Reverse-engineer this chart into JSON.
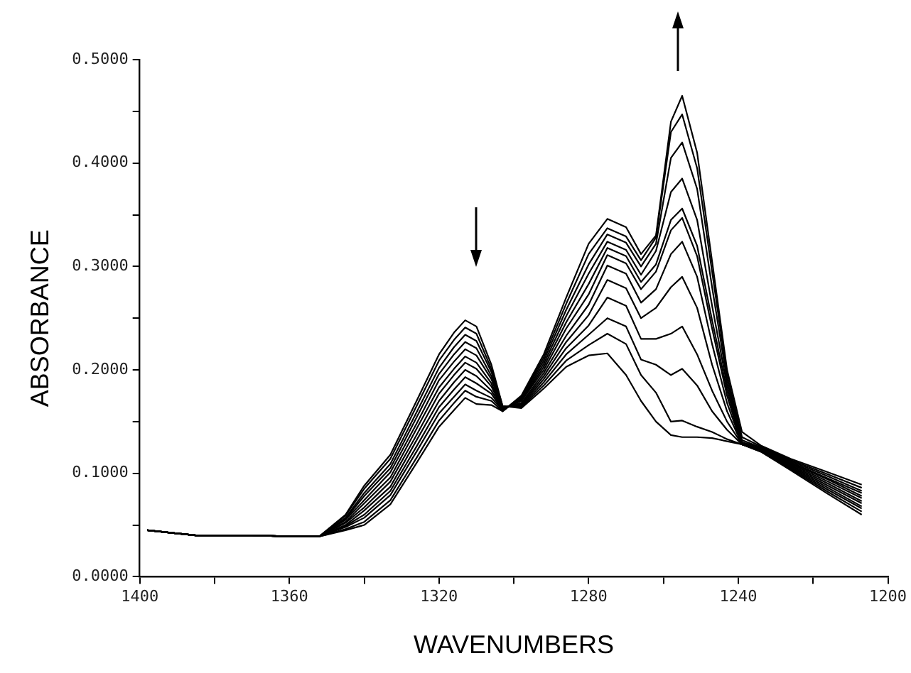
{
  "chart_data": {
    "type": "line",
    "xlabel": "WAVENUMBERS",
    "ylabel": "ABSORBANCE",
    "xlim": [
      1400,
      1200
    ],
    "ylim": [
      0,
      0.5
    ],
    "xticks": [
      1400,
      {
        "value": 1380,
        "label": null
      },
      1360,
      {
        "value": 1340,
        "label": null
      },
      1320,
      {
        "value": 1300,
        "label": null
      },
      1280,
      {
        "value": 1260,
        "label": null
      },
      1240,
      {
        "value": 1220,
        "label": null
      },
      1200
    ],
    "yticks": [
      {
        "value": 0,
        "label": "0.0000"
      },
      {
        "value": 0.05,
        "label": null
      },
      {
        "value": 0.1,
        "label": "0.1000"
      },
      {
        "value": 0.15,
        "label": null
      },
      {
        "value": 0.2,
        "label": "0.2000"
      },
      {
        "value": 0.25,
        "label": null
      },
      {
        "value": 0.3,
        "label": "0.3000"
      },
      {
        "value": 0.35,
        "label": null
      },
      {
        "value": 0.4,
        "label": "0.4000"
      },
      {
        "value": 0.45,
        "label": null
      },
      {
        "value": 0.5,
        "label": "0.5000"
      }
    ],
    "marker": "none",
    "legend": false,
    "grid": false,
    "x": [
      1398,
      1385,
      1370,
      1360,
      1352,
      1345,
      1340,
      1333,
      1326,
      1320,
      1316,
      1313,
      1310,
      1306,
      1303,
      1298,
      1292,
      1286,
      1280,
      1275,
      1270,
      1266,
      1262,
      1258,
      1255,
      1251,
      1247,
      1243,
      1239,
      1234,
      1226,
      1216,
      1207
    ],
    "series": [
      {
        "color": "#000000",
        "values": [
          0.045,
          0.04,
          0.04,
          0.039,
          0.039,
          0.06,
          0.088,
          0.118,
          0.17,
          0.215,
          0.236,
          0.248,
          0.242,
          0.205,
          0.165,
          0.163,
          0.182,
          0.203,
          0.214,
          0.216,
          0.195,
          0.17,
          0.15,
          0.137,
          0.135,
          0.135,
          0.134,
          0.131,
          0.128,
          0.121,
          0.103,
          0.08,
          0.06
        ]
      },
      {
        "color": "#000000",
        "values": [
          0.045,
          0.04,
          0.04,
          0.039,
          0.039,
          0.059,
          0.085,
          0.114,
          0.165,
          0.209,
          0.229,
          0.241,
          0.235,
          0.201,
          0.165,
          0.164,
          0.185,
          0.209,
          0.224,
          0.235,
          0.225,
          0.195,
          0.178,
          0.15,
          0.151,
          0.145,
          0.14,
          0.133,
          0.128,
          0.121,
          0.104,
          0.082,
          0.063
        ]
      },
      {
        "color": "#000000",
        "values": [
          0.045,
          0.04,
          0.04,
          0.039,
          0.039,
          0.057,
          0.081,
          0.109,
          0.159,
          0.202,
          0.222,
          0.234,
          0.228,
          0.198,
          0.164,
          0.165,
          0.188,
          0.215,
          0.234,
          0.25,
          0.242,
          0.21,
          0.205,
          0.195,
          0.201,
          0.185,
          0.16,
          0.142,
          0.128,
          0.122,
          0.105,
          0.084,
          0.066
        ]
      },
      {
        "color": "#000000",
        "values": [
          0.045,
          0.04,
          0.04,
          0.039,
          0.039,
          0.056,
          0.078,
          0.105,
          0.154,
          0.196,
          0.215,
          0.227,
          0.221,
          0.194,
          0.164,
          0.166,
          0.191,
          0.221,
          0.243,
          0.27,
          0.262,
          0.23,
          0.23,
          0.235,
          0.242,
          0.215,
          0.18,
          0.15,
          0.128,
          0.122,
          0.106,
          0.086,
          0.068
        ]
      },
      {
        "color": "#000000",
        "values": [
          0.045,
          0.04,
          0.04,
          0.039,
          0.039,
          0.055,
          0.074,
          0.101,
          0.148,
          0.19,
          0.208,
          0.22,
          0.214,
          0.191,
          0.163,
          0.167,
          0.194,
          0.227,
          0.253,
          0.287,
          0.279,
          0.25,
          0.26,
          0.28,
          0.29,
          0.26,
          0.205,
          0.16,
          0.128,
          0.123,
          0.107,
          0.088,
          0.071
        ]
      },
      {
        "color": "#000000",
        "values": [
          0.045,
          0.04,
          0.04,
          0.039,
          0.039,
          0.053,
          0.071,
          0.096,
          0.143,
          0.183,
          0.201,
          0.213,
          0.207,
          0.187,
          0.163,
          0.168,
          0.197,
          0.233,
          0.263,
          0.301,
          0.293,
          0.265,
          0.278,
          0.312,
          0.324,
          0.29,
          0.225,
          0.168,
          0.128,
          0.123,
          0.108,
          0.09,
          0.073
        ]
      },
      {
        "color": "#000000",
        "values": [
          0.045,
          0.04,
          0.04,
          0.039,
          0.039,
          0.052,
          0.067,
          0.092,
          0.137,
          0.177,
          0.195,
          0.207,
          0.201,
          0.184,
          0.162,
          0.17,
          0.2,
          0.24,
          0.273,
          0.311,
          0.303,
          0.278,
          0.295,
          0.335,
          0.347,
          0.31,
          0.24,
          0.175,
          0.128,
          0.124,
          0.109,
          0.092,
          0.076
        ]
      },
      {
        "color": "#000000",
        "values": [
          0.045,
          0.04,
          0.04,
          0.039,
          0.039,
          0.05,
          0.064,
          0.087,
          0.132,
          0.17,
          0.188,
          0.2,
          0.194,
          0.18,
          0.162,
          0.171,
          0.203,
          0.246,
          0.283,
          0.318,
          0.31,
          0.285,
          0.302,
          0.345,
          0.356,
          0.32,
          0.248,
          0.18,
          0.129,
          0.124,
          0.11,
          0.094,
          0.078
        ]
      },
      {
        "color": "#000000",
        "values": [
          0.045,
          0.04,
          0.04,
          0.039,
          0.039,
          0.049,
          0.06,
          0.083,
          0.126,
          0.164,
          0.181,
          0.193,
          0.187,
          0.177,
          0.161,
          0.172,
          0.206,
          0.252,
          0.293,
          0.324,
          0.316,
          0.292,
          0.315,
          0.372,
          0.385,
          0.345,
          0.262,
          0.185,
          0.13,
          0.125,
          0.111,
          0.095,
          0.081
        ]
      },
      {
        "color": "#000000",
        "values": [
          0.045,
          0.04,
          0.04,
          0.039,
          0.039,
          0.048,
          0.057,
          0.079,
          0.121,
          0.158,
          0.174,
          0.186,
          0.18,
          0.173,
          0.161,
          0.173,
          0.209,
          0.258,
          0.302,
          0.331,
          0.323,
          0.3,
          0.322,
          0.405,
          0.42,
          0.375,
          0.28,
          0.19,
          0.132,
          0.125,
          0.112,
          0.097,
          0.083
        ]
      },
      {
        "color": "#000000",
        "values": [
          0.045,
          0.04,
          0.04,
          0.039,
          0.039,
          0.046,
          0.053,
          0.074,
          0.115,
          0.151,
          0.168,
          0.18,
          0.174,
          0.17,
          0.16,
          0.174,
          0.212,
          0.264,
          0.312,
          0.337,
          0.329,
          0.306,
          0.328,
          0.43,
          0.447,
          0.395,
          0.295,
          0.195,
          0.135,
          0.126,
          0.113,
          0.099,
          0.086
        ]
      },
      {
        "color": "#000000",
        "values": [
          0.045,
          0.04,
          0.04,
          0.039,
          0.039,
          0.045,
          0.05,
          0.07,
          0.11,
          0.145,
          0.161,
          0.173,
          0.167,
          0.166,
          0.16,
          0.175,
          0.215,
          0.27,
          0.322,
          0.346,
          0.338,
          0.312,
          0.33,
          0.44,
          0.465,
          0.41,
          0.305,
          0.2,
          0.14,
          0.127,
          0.114,
          0.101,
          0.089
        ]
      }
    ]
  }
}
